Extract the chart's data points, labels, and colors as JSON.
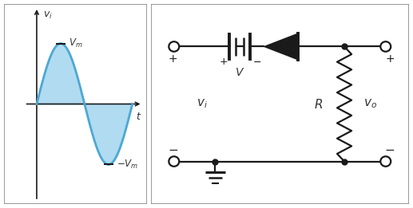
{
  "sine_color": "#4da8d4",
  "sine_fill_color": "#a8d8f0",
  "sine_linewidth": 2.0,
  "axis_color": "#1a1a1a",
  "text_color": "#333333",
  "circuit_line_color": "#1a1a1a",
  "border_color": "#888888",
  "fig_w": 5.17,
  "fig_h": 2.61,
  "dpi": 100
}
